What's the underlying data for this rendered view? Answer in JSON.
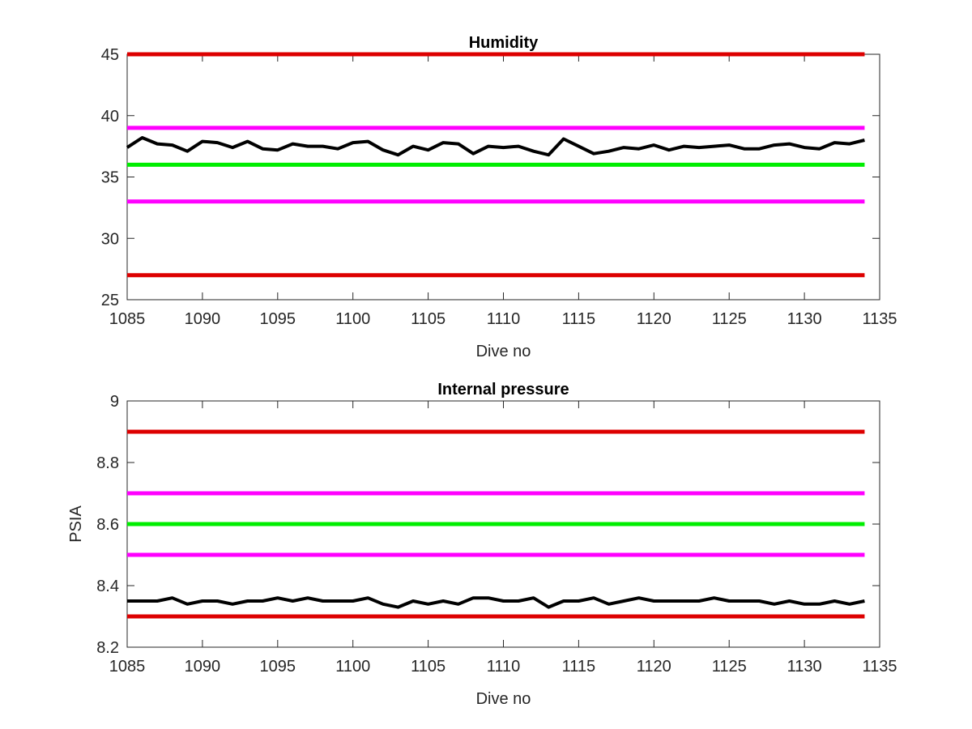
{
  "chart_data": [
    {
      "type": "line",
      "title": "Humidity",
      "xlabel": "Dive no",
      "ylabel": "",
      "xlim": [
        1085,
        1135
      ],
      "ylim": [
        25,
        45
      ],
      "xticks": [
        "1085",
        "1090",
        "1095",
        "1100",
        "1105",
        "1110",
        "1115",
        "1120",
        "1125",
        "1130",
        "1135"
      ],
      "yticks": [
        "25",
        "30",
        "35",
        "40",
        "45"
      ],
      "grid": false,
      "reference_lines": [
        {
          "y": 45,
          "color": "#dd0000"
        },
        {
          "y": 39,
          "color": "#ff00ff"
        },
        {
          "y": 36,
          "color": "#00ee00"
        },
        {
          "y": 33,
          "color": "#ff00ff"
        },
        {
          "y": 27,
          "color": "#dd0000"
        }
      ],
      "series": [
        {
          "color": "#000000",
          "x": [
            1085,
            1086,
            1087,
            1088,
            1089,
            1090,
            1091,
            1092,
            1093,
            1094,
            1095,
            1096,
            1097,
            1098,
            1099,
            1100,
            1101,
            1102,
            1103,
            1104,
            1105,
            1106,
            1107,
            1108,
            1109,
            1110,
            1111,
            1112,
            1113,
            1114,
            1115,
            1116,
            1117,
            1118,
            1119,
            1120,
            1121,
            1122,
            1123,
            1124,
            1125,
            1126,
            1127,
            1128,
            1129,
            1130,
            1131,
            1132,
            1133,
            1134
          ],
          "values": [
            37.4,
            38.2,
            37.7,
            37.6,
            37.1,
            37.9,
            37.8,
            37.4,
            37.9,
            37.3,
            37.2,
            37.7,
            37.5,
            37.5,
            37.3,
            37.8,
            37.9,
            37.2,
            36.8,
            37.5,
            37.2,
            37.8,
            37.7,
            36.9,
            37.5,
            37.4,
            37.5,
            37.1,
            36.8,
            38.1,
            37.5,
            36.9,
            37.1,
            37.4,
            37.3,
            37.6,
            37.2,
            37.5,
            37.4,
            37.5,
            37.6,
            37.3,
            37.3,
            37.6,
            37.7,
            37.4,
            37.3,
            37.8,
            37.7,
            38.0
          ]
        }
      ]
    },
    {
      "type": "line",
      "title": "Internal pressure",
      "xlabel": "Dive no",
      "ylabel": "PSIA",
      "xlim": [
        1085,
        1135
      ],
      "ylim": [
        8.2,
        9.0
      ],
      "xticks": [
        "1085",
        "1090",
        "1095",
        "1100",
        "1105",
        "1110",
        "1115",
        "1120",
        "1125",
        "1130",
        "1135"
      ],
      "yticks": [
        "8.2",
        "8.4",
        "8.6",
        "8.8",
        "9"
      ],
      "grid": false,
      "reference_lines": [
        {
          "y": 8.9,
          "color": "#dd0000"
        },
        {
          "y": 8.7,
          "color": "#ff00ff"
        },
        {
          "y": 8.6,
          "color": "#00ee00"
        },
        {
          "y": 8.5,
          "color": "#ff00ff"
        },
        {
          "y": 8.3,
          "color": "#dd0000"
        }
      ],
      "series": [
        {
          "color": "#000000",
          "x": [
            1085,
            1086,
            1087,
            1088,
            1089,
            1090,
            1091,
            1092,
            1093,
            1094,
            1095,
            1096,
            1097,
            1098,
            1099,
            1100,
            1101,
            1102,
            1103,
            1104,
            1105,
            1106,
            1107,
            1108,
            1109,
            1110,
            1111,
            1112,
            1113,
            1114,
            1115,
            1116,
            1117,
            1118,
            1119,
            1120,
            1121,
            1122,
            1123,
            1124,
            1125,
            1126,
            1127,
            1128,
            1129,
            1130,
            1131,
            1132,
            1133,
            1134
          ],
          "values": [
            8.35,
            8.35,
            8.35,
            8.36,
            8.34,
            8.35,
            8.35,
            8.34,
            8.35,
            8.35,
            8.36,
            8.35,
            8.36,
            8.35,
            8.35,
            8.35,
            8.36,
            8.34,
            8.33,
            8.35,
            8.34,
            8.35,
            8.34,
            8.36,
            8.36,
            8.35,
            8.35,
            8.36,
            8.33,
            8.35,
            8.35,
            8.36,
            8.34,
            8.35,
            8.36,
            8.35,
            8.35,
            8.35,
            8.35,
            8.36,
            8.35,
            8.35,
            8.35,
            8.34,
            8.35,
            8.34,
            8.34,
            8.35,
            8.34,
            8.35
          ]
        }
      ]
    }
  ]
}
